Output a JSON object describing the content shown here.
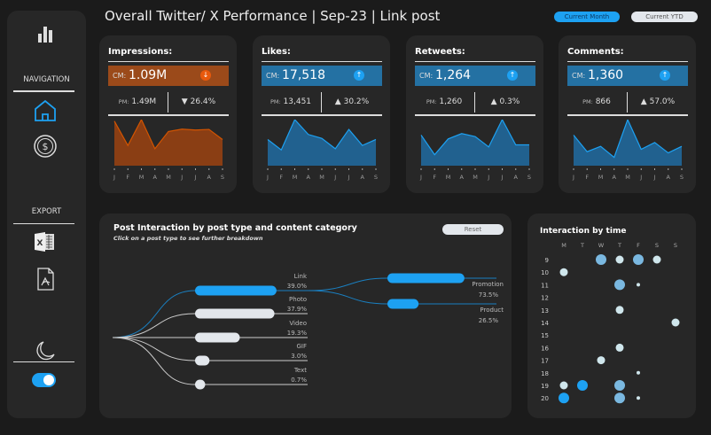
{
  "header": {
    "title": "Overall Twitter/ X Performance | Sep-23 | Link post",
    "toggle_month": "Current Month",
    "toggle_ytd": "Current YTD"
  },
  "sidebar": {
    "logo_icon": "bar-chart-icon",
    "navigation_label": "NAVIGATION",
    "nav_items": [
      "home-icon",
      "dollar-icon"
    ],
    "export_label": "EXPORT",
    "export_items": [
      "excel-icon",
      "pdf-icon"
    ],
    "theme_icon": "moon-icon",
    "dark_mode_on": true
  },
  "colors": {
    "accent": "#1da1f2",
    "blue_bar": "#2471a3",
    "orange_bar": "#9b4a1a",
    "orange_line": "#d35400"
  },
  "months": [
    "J",
    "F",
    "M",
    "A",
    "M",
    "J",
    "J",
    "A",
    "S"
  ],
  "kpis": [
    {
      "title": "Impressions:",
      "cm_label": "CM:",
      "cm": "1.09M",
      "pm_label": "PM:",
      "pm": "1.49M",
      "change": "26.4%",
      "direction": "down",
      "trend": [
        150,
        68,
        155,
        57,
        115,
        123,
        120,
        122,
        88
      ]
    },
    {
      "title": "Likes:",
      "cm_label": "CM:",
      "cm": "17,518",
      "pm_label": "PM:",
      "pm": "13,451",
      "change": "30.2%",
      "direction": "up",
      "trend": [
        88,
        53,
        155,
        105,
        92,
        57,
        122,
        68,
        88
      ]
    },
    {
      "title": "Retweets:",
      "cm_label": "CM:",
      "cm": "1,264",
      "pm_label": "PM:",
      "pm": "1,260",
      "change": "0.3%",
      "direction": "up",
      "trend": [
        103,
        37,
        90,
        108,
        98,
        63,
        155,
        70,
        70
      ]
    },
    {
      "title": "Comments:",
      "cm_label": "CM:",
      "cm": "1,360",
      "pm_label": "PM:",
      "pm": "866",
      "change": "57.0%",
      "direction": "up",
      "trend": [
        103,
        47,
        65,
        28,
        155,
        55,
        78,
        43,
        65
      ]
    }
  ],
  "post_interaction": {
    "title": "Post Interaction by post type and content category",
    "subtitle": "Click on a post type to see further breakdown",
    "reset_label": "Reset",
    "types": [
      {
        "name": "Link",
        "pct": "39.0%",
        "value": 39.0,
        "selected": true
      },
      {
        "name": "Photo",
        "pct": "37.9%",
        "value": 37.9
      },
      {
        "name": "Video",
        "pct": "19.3%",
        "value": 19.3
      },
      {
        "name": "GIF",
        "pct": "3.0%",
        "value": 3.0
      },
      {
        "name": "Text",
        "pct": "0.7%",
        "value": 0.7
      }
    ],
    "categories": [
      {
        "name": "Promotion",
        "pct": "73.5%",
        "value": 73.5
      },
      {
        "name": "Product",
        "pct": "26.5%",
        "value": 26.5
      }
    ]
  },
  "interaction_time": {
    "title": "Interaction by time",
    "days": [
      "M",
      "T",
      "W",
      "T",
      "F",
      "S",
      "S"
    ],
    "hours": [
      "9",
      "10",
      "11",
      "12",
      "13",
      "14",
      "15",
      "16",
      "17",
      "18",
      "19",
      "20"
    ],
    "bubbles": [
      {
        "day": 2,
        "hour": 9,
        "size": 3,
        "shade": "mid"
      },
      {
        "day": 3,
        "hour": 9,
        "size": 2,
        "shade": "light"
      },
      {
        "day": 4,
        "hour": 9,
        "size": 3,
        "shade": "mid"
      },
      {
        "day": 5,
        "hour": 9,
        "size": 2,
        "shade": "light"
      },
      {
        "day": 0,
        "hour": 10,
        "size": 2,
        "shade": "light"
      },
      {
        "day": 3,
        "hour": 11,
        "size": 3,
        "shade": "mid"
      },
      {
        "day": 4,
        "hour": 11,
        "size": 1,
        "shade": "light"
      },
      {
        "day": 3,
        "hour": 13,
        "size": 2,
        "shade": "light"
      },
      {
        "day": 6,
        "hour": 14,
        "size": 2,
        "shade": "light"
      },
      {
        "day": 3,
        "hour": 16,
        "size": 2,
        "shade": "light"
      },
      {
        "day": 2,
        "hour": 17,
        "size": 2,
        "shade": "light"
      },
      {
        "day": 4,
        "hour": 18,
        "size": 1,
        "shade": "light"
      },
      {
        "day": 0,
        "hour": 19,
        "size": 2,
        "shade": "light"
      },
      {
        "day": 1,
        "hour": 19,
        "size": 3,
        "shade": "bright"
      },
      {
        "day": 3,
        "hour": 19,
        "size": 3,
        "shade": "mid"
      },
      {
        "day": 0,
        "hour": 20,
        "size": 3,
        "shade": "bright"
      },
      {
        "day": 3,
        "hour": 20,
        "size": 3,
        "shade": "mid"
      },
      {
        "day": 4,
        "hour": 20,
        "size": 1,
        "shade": "light"
      }
    ]
  }
}
